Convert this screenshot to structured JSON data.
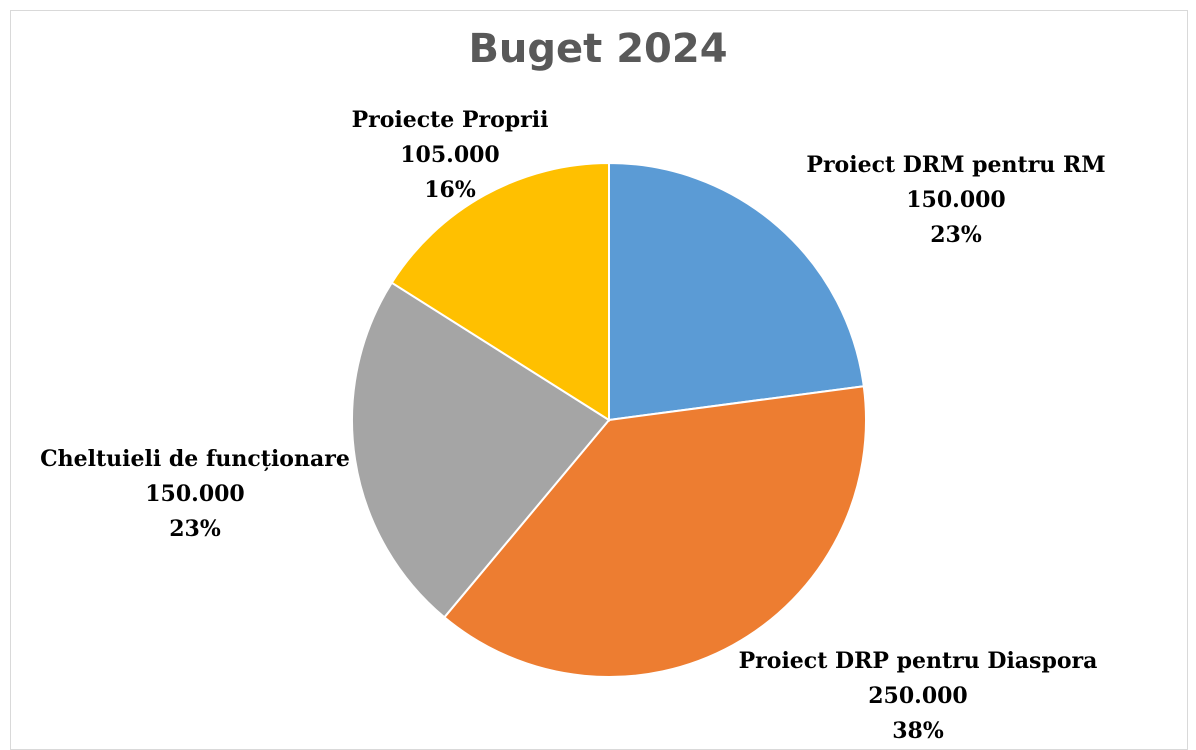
{
  "chart_data": {
    "type": "pie",
    "title": "Buget 2024",
    "categories": [
      "Proiect DRM pentru RM",
      "Proiect DRP pentru Diaspora",
      "Cheltuieli de funcționare",
      "Proiecte Proprii"
    ],
    "values": [
      150000,
      250000,
      150000,
      105000
    ],
    "value_labels": [
      "150.000",
      "250.000",
      "150.000",
      "105.000"
    ],
    "percent_labels": [
      "23%",
      "38%",
      "23%",
      "16%"
    ],
    "colors": [
      "#5b9bd5",
      "#ed7d31",
      "#a5a5a5",
      "#ffc000"
    ],
    "start_angle_deg": 0,
    "direction": "clockwise",
    "legend": "none",
    "data_labels": "outside"
  }
}
